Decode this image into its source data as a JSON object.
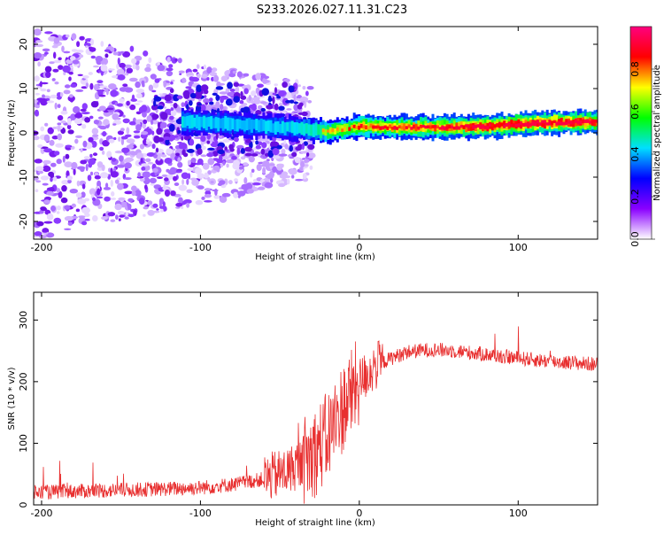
{
  "title": "S233.2026.027.11.31.C23",
  "chart_data": [
    {
      "type": "heatmap",
      "name": "spectrogram",
      "xlabel": "Height of straight line (km)",
      "ylabel": "Frequency (Hz)",
      "xlim": [
        -205,
        150
      ],
      "ylim": [
        -24,
        24
      ],
      "xticks": [
        -200,
        -100,
        0,
        100
      ],
      "yticks": [
        -20,
        -10,
        0,
        10,
        20
      ],
      "colorbar": {
        "label": "Normalized spectral amplitude",
        "range": [
          0.0,
          1.0
        ],
        "ticks": [
          0.0,
          0.2,
          0.4,
          0.6,
          0.8
        ],
        "tick_labels": [
          "0.0",
          "0.2",
          "0.4",
          "0.6",
          "0.8"
        ],
        "colors": [
          "#ffffff",
          "#8a00ff",
          "#0000ff",
          "#00e0ff",
          "#00ff00",
          "#ffff00",
          "#ff0000",
          "#ff007f"
        ]
      },
      "signal_band": [
        {
          "x": -110,
          "f": 2.5,
          "amp": 0.35
        },
        {
          "x": -80,
          "f": 2.0,
          "amp": 0.3
        },
        {
          "x": -40,
          "f": 1.0,
          "amp": 0.35
        },
        {
          "x": -20,
          "f": 0.3,
          "amp": 0.55
        },
        {
          "x": 0,
          "f": 1.5,
          "amp": 0.65
        },
        {
          "x": 20,
          "f": 1.2,
          "amp": 0.7
        },
        {
          "x": 50,
          "f": 1.3,
          "amp": 0.75
        },
        {
          "x": 80,
          "f": 1.5,
          "amp": 0.8
        },
        {
          "x": 110,
          "f": 2.2,
          "amp": 0.85
        },
        {
          "x": 150,
          "f": 2.5,
          "amp": 0.8
        }
      ]
    },
    {
      "type": "line",
      "name": "snr",
      "xlabel": "Height of straight line (km)",
      "ylabel": "SNR (10 * v/v)",
      "xlim": [
        -205,
        150
      ],
      "ylim": [
        0,
        345
      ],
      "xticks": [
        -200,
        -100,
        0,
        100
      ],
      "yticks": [
        0,
        100,
        200,
        300
      ],
      "color": "#e83030",
      "trend": {
        "x": [
          -205,
          -180,
          -150,
          -120,
          -100,
          -80,
          -60,
          -45,
          -30,
          -20,
          -10,
          0,
          10,
          20,
          30,
          45,
          60,
          80,
          100,
          120,
          150
        ],
        "y": [
          20,
          22,
          24,
          26,
          28,
          33,
          42,
          55,
          80,
          110,
          160,
          200,
          225,
          238,
          248,
          252,
          250,
          244,
          238,
          233,
          228
        ]
      }
    }
  ]
}
